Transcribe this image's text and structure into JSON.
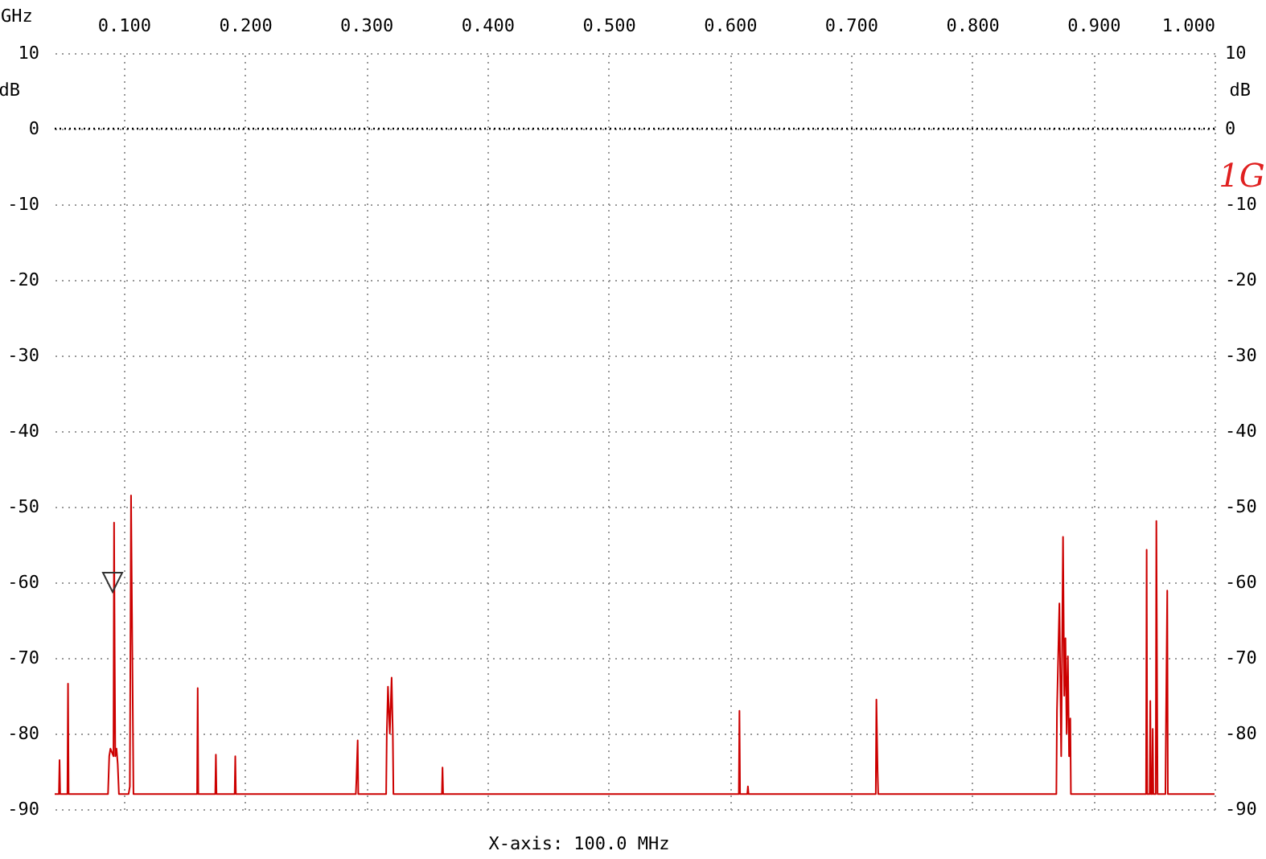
{
  "chart_data": {
    "type": "line",
    "xlabel": "GHz",
    "ylabel": "dB",
    "y2label": "dB",
    "annotations": [
      "X-axis: 100.0 MHz",
      "1G"
    ],
    "xlim": [
      0.043,
      1.0
    ],
    "xticks": [
      {
        "value": 0.1,
        "label": "0.100"
      },
      {
        "value": 0.2,
        "label": "0.200"
      },
      {
        "value": 0.3,
        "label": "0.300"
      },
      {
        "value": 0.4,
        "label": "0.400"
      },
      {
        "value": 0.5,
        "label": "0.500"
      },
      {
        "value": 0.6,
        "label": "0.600"
      },
      {
        "value": 0.7,
        "label": "0.700"
      },
      {
        "value": 0.8,
        "label": "0.800"
      },
      {
        "value": 0.9,
        "label": "0.900"
      },
      {
        "value": 1.0,
        "label": "1.000"
      }
    ],
    "ylim": [
      -90,
      10
    ],
    "yticks": [
      -90,
      -80,
      -70,
      -60,
      -50,
      -40,
      -30,
      -20,
      -10,
      0,
      10
    ],
    "y2lim": [
      -90,
      10
    ],
    "y2ticks": [
      -90,
      -80,
      -70,
      -60,
      -50,
      -40,
      -30,
      -20,
      -10,
      0,
      10
    ],
    "grid": true,
    "ref_lines": [
      {
        "axis": "y",
        "value": 0,
        "label": null,
        "color": "#000000",
        "line_style": "dotted"
      }
    ],
    "series": [
      {
        "color": "#cc0000",
        "x": [
          0.043,
          0.0465,
          0.047,
          0.0475,
          0.0535,
          0.054,
          0.0545,
          0.087,
          0.088,
          0.089,
          0.0915,
          0.092,
          0.0925,
          0.093,
          0.094,
          0.095,
          0.096,
          0.104,
          0.105,
          0.106,
          0.107,
          0.108,
          0.1605,
          0.161,
          0.1615,
          0.1755,
          0.176,
          0.1765,
          0.1915,
          0.192,
          0.1925,
          0.2915,
          0.292,
          0.293,
          0.2935,
          0.3165,
          0.317,
          0.318,
          0.3195,
          0.321,
          0.322,
          0.3225,
          0.3625,
          0.363,
          0.3635,
          0.6075,
          0.608,
          0.6085,
          0.6145,
          0.615,
          0.6155,
          0.7205,
          0.721,
          0.722,
          0.7225,
          0.8695,
          0.87,
          0.872,
          0.8735,
          0.875,
          0.876,
          0.877,
          0.878,
          0.879,
          0.88,
          0.881,
          0.8815,
          0.9435,
          0.944,
          0.9445,
          0.9465,
          0.947,
          0.9475,
          0.9485,
          0.949,
          0.9495,
          0.9515,
          0.952,
          0.9525,
          0.953,
          0.9535,
          0.9595,
          0.96,
          0.961,
          0.9615,
          1.0
        ],
        "values": [
          -88,
          -88,
          -83.5,
          -88,
          -88,
          -73.4,
          -88,
          -88,
          -83,
          -82,
          -83,
          -52.1,
          -69.6,
          -83,
          -82,
          -84,
          -88,
          -88,
          -87,
          -48.5,
          -68.3,
          -88,
          -88,
          -74,
          -88,
          -88,
          -82.8,
          -88,
          -88,
          -83,
          -88,
          -88,
          -86,
          -80.9,
          -88,
          -88,
          -80.2,
          -73.8,
          -80,
          -72.6,
          -80.2,
          -88,
          -88,
          -84.5,
          -88,
          -88,
          -77,
          -88,
          -88,
          -87,
          -88,
          -88,
          -75.5,
          -85,
          -88,
          -88,
          -77,
          -62.8,
          -83,
          -54,
          -75,
          -67.4,
          -80,
          -69.8,
          -83,
          -78,
          -88,
          -88,
          -55.7,
          -88,
          -88,
          -75.7,
          -88,
          -88,
          -79.4,
          -88,
          -88,
          -51.9,
          -69.8,
          -88,
          -88,
          -88,
          -78,
          -61.1,
          -88,
          -88
        ]
      }
    ]
  }
}
